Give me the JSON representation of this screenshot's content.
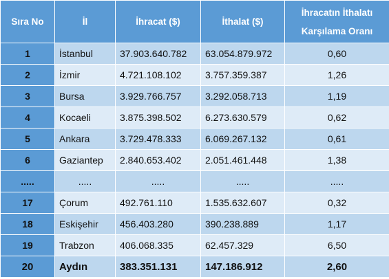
{
  "table": {
    "headers": {
      "sira": "Sıra No",
      "il": "İl",
      "ihracat": "İhracat ($)",
      "ithalat": "İthalat ($)",
      "oran_line1": "İhracatın İthalatı",
      "oran_line2": "Karşılama Oranı"
    },
    "rows": [
      {
        "sira": "1",
        "il": "İstanbul",
        "ihracat": "37.903.640.782",
        "ithalat": "63.054.879.972",
        "oran": "0,60"
      },
      {
        "sira": "2",
        "il": "İzmir",
        "ihracat": "4.721.108.102",
        "ithalat": "3.757.359.387",
        "oran": "1,26"
      },
      {
        "sira": "3",
        "il": "Bursa",
        "ihracat": "3.929.766.757",
        "ithalat": "3.292.058.713",
        "oran": "1,19"
      },
      {
        "sira": "4",
        "il": "Kocaeli",
        "ihracat": "3.875.398.502",
        "ithalat": "6.273.630.579",
        "oran": "0,62"
      },
      {
        "sira": "5",
        "il": "Ankara",
        "ihracat": "3.729.478.333",
        "ithalat": "6.069.267.132",
        "oran": "0,61"
      },
      {
        "sira": "6",
        "il": "Gaziantep",
        "ihracat": "2.840.653.402",
        "ithalat": "2.051.461.448",
        "oran": "1,38"
      },
      {
        "sira": ".....",
        "il": ".....",
        "ihracat": ".....",
        "ithalat": ".....",
        "oran": "....."
      },
      {
        "sira": "17",
        "il": "Çorum",
        "ihracat": "492.761.110",
        "ithalat": "1.535.632.607",
        "oran": "0,32"
      },
      {
        "sira": "18",
        "il": "Eskişehir",
        "ihracat": "456.403.280",
        "ithalat": "390.238.889",
        "oran": "1,17"
      },
      {
        "sira": "19",
        "il": "Trabzon",
        "ihracat": "406.068.335",
        "ithalat": "62.457.329",
        "oran": "6,50"
      },
      {
        "sira": "20",
        "il": "Aydın",
        "ihracat": "383.351.131",
        "ithalat": "147.186.912",
        "oran": "2,60"
      }
    ]
  },
  "colors": {
    "header_bg": "#5b9bd5",
    "row_odd": "#bdd7ee",
    "row_even": "#deebf7"
  }
}
